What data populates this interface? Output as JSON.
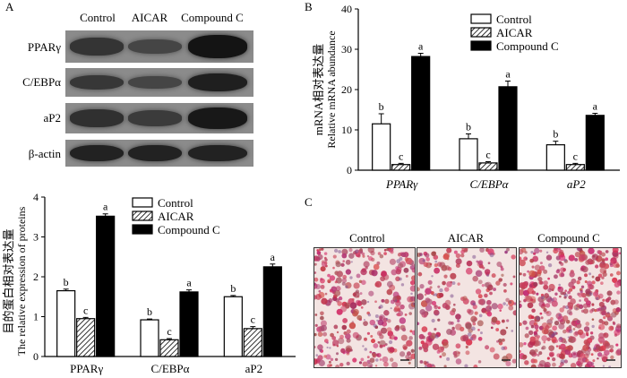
{
  "panel_labels": {
    "a": "A",
    "b": "B",
    "c": "C"
  },
  "blot": {
    "columns": [
      "Control",
      "AICAR",
      "Compound C"
    ],
    "rows": [
      "PPARγ",
      "C/EBPα",
      "aP2",
      "β-actin"
    ],
    "band_intensity": [
      [
        0.55,
        0.3,
        1.0
      ],
      [
        0.5,
        0.3,
        0.85
      ],
      [
        0.6,
        0.45,
        0.95
      ],
      [
        0.8,
        0.8,
        0.8
      ]
    ]
  },
  "micrographs": {
    "labels": [
      "Control",
      "AICAR",
      "Compound C"
    ],
    "stain_density": [
      0.55,
      0.3,
      0.9
    ]
  },
  "chart_data": [
    {
      "type": "bar",
      "id": "protein",
      "categories": [
        "PPARγ",
        "C/EBPα",
        "aP2"
      ],
      "series": [
        {
          "name": "Control",
          "values": [
            1.65,
            0.92,
            1.5
          ],
          "errors": [
            0.04,
            0.02,
            0.03
          ],
          "letters": [
            "b",
            "b",
            "b"
          ]
        },
        {
          "name": "AICAR",
          "values": [
            0.95,
            0.42,
            0.7
          ],
          "errors": [
            0.03,
            0.03,
            0.05
          ],
          "letters": [
            "c",
            "c",
            "c"
          ]
        },
        {
          "name": "Compound C",
          "values": [
            3.52,
            1.62,
            2.25
          ],
          "errors": [
            0.06,
            0.05,
            0.07
          ],
          "letters": [
            "a",
            "a",
            "a"
          ]
        }
      ],
      "ylabel_cn": "目的蛋白相对表达量",
      "ylabel": "The relative expression of proteins",
      "ylim": [
        0,
        4
      ],
      "yticks": [
        0,
        1,
        2,
        3,
        4
      ],
      "legend": "top-right",
      "category_italic": false
    },
    {
      "type": "bar",
      "id": "mrna",
      "categories": [
        "PPARγ",
        "C/EBPα",
        "aP2"
      ],
      "series": [
        {
          "name": "Control",
          "values": [
            11.5,
            7.8,
            6.3
          ],
          "errors": [
            2.5,
            1.2,
            0.9
          ],
          "letters": [
            "b",
            "b",
            "b"
          ]
        },
        {
          "name": "AICAR",
          "values": [
            1.4,
            1.8,
            1.4
          ],
          "errors": [
            0.3,
            0.3,
            0.3
          ],
          "letters": [
            "c",
            "c",
            "c"
          ]
        },
        {
          "name": "Compound C",
          "values": [
            28.2,
            20.7,
            13.6
          ],
          "errors": [
            0.8,
            1.4,
            0.5
          ],
          "letters": [
            "a",
            "a",
            "a"
          ]
        }
      ],
      "ylabel_cn": "mRNA相对表达量",
      "ylabel": "Relative mRNA abundance",
      "ylim": [
        0,
        40
      ],
      "yticks": [
        0,
        10,
        20,
        30,
        40
      ],
      "legend": "top-right",
      "category_italic": true
    }
  ]
}
